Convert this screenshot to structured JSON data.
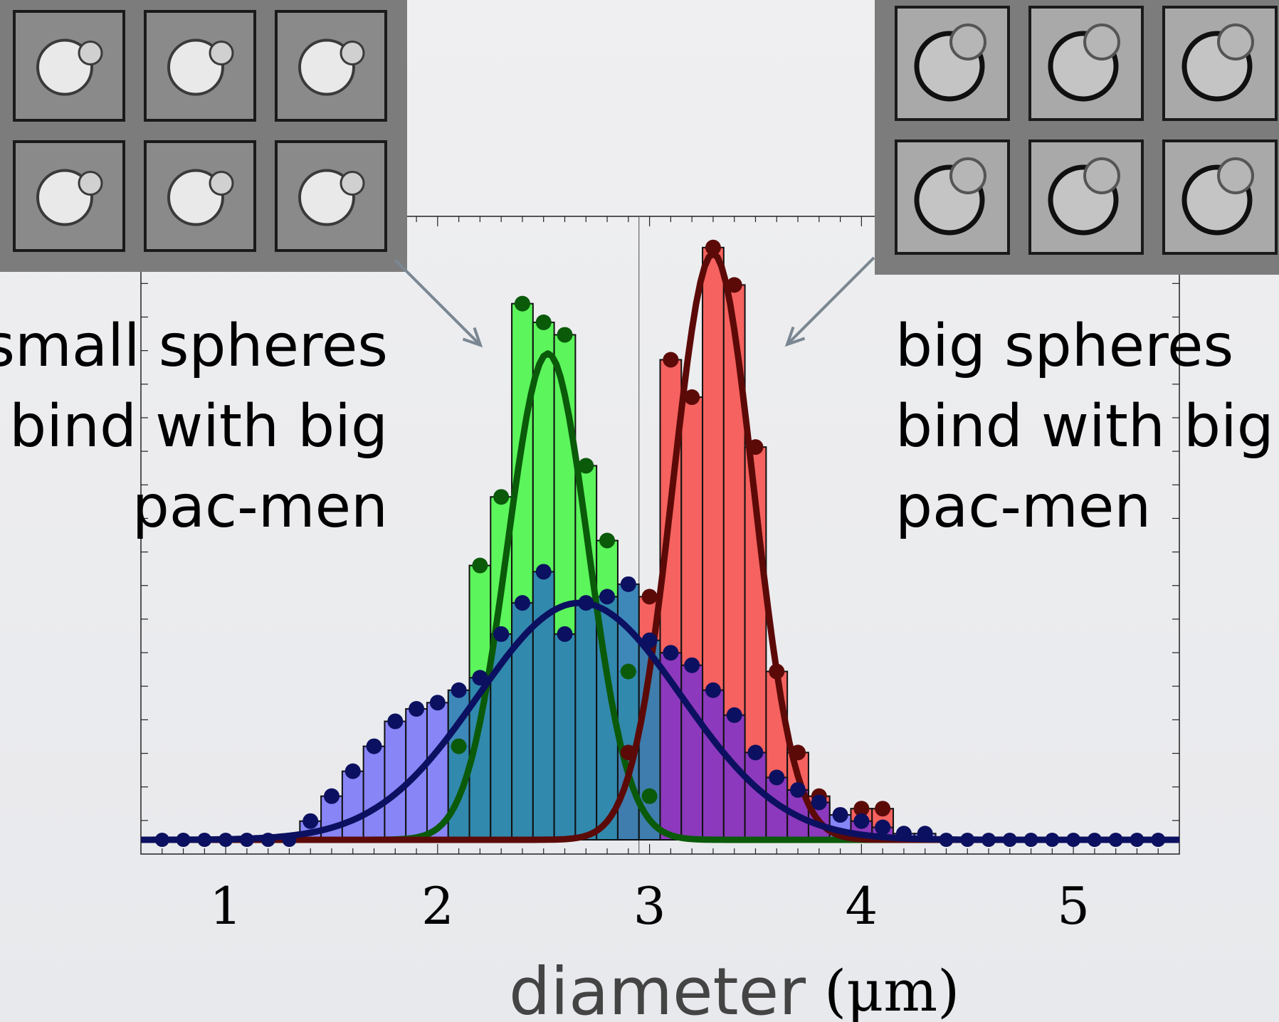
{
  "annotations": {
    "left": "small spheres\nbind with big\npac-men",
    "right": "big spheres\nbind with big\npac-men"
  },
  "thumbnails": {
    "left": "small-sphere-cluster-micrographs",
    "right": "big-sphere-cluster-micrographs"
  },
  "colors": {
    "green_bar": "#5cf55c",
    "green_fit": "#0a5a0a",
    "red_bar": "#f5625f",
    "red_fit": "#5c0a08",
    "blue_bar": "#7f7cf7",
    "blue_fit": "#0c1060",
    "overlap_teal": "#2e7fb4",
    "overlap_purple": "#8235c6"
  },
  "chart_data": {
    "type": "bar",
    "xlabel": "diameter",
    "xlabel_unit": "(μm)",
    "ylabel": "",
    "xlim": [
      0.6,
      5.5
    ],
    "ylim": [
      0,
      1.0
    ],
    "x_ticks": [
      "1",
      "2",
      "3",
      "4",
      "5"
    ],
    "bin_width": 0.1,
    "grid": false,
    "series": [
      {
        "key": "green",
        "x": [
          2.1,
          2.2,
          2.3,
          2.4,
          2.5,
          2.6,
          2.7,
          2.8,
          2.9,
          3.0
        ],
        "values": [
          0.15,
          0.44,
          0.55,
          0.86,
          0.83,
          0.81,
          0.6,
          0.48,
          0.27,
          0.07
        ],
        "fit_peak": 0.78,
        "fit_mean": 2.52,
        "fit_sigma": 0.19
      },
      {
        "key": "red",
        "x": [
          2.9,
          3.0,
          3.1,
          3.2,
          3.3,
          3.4,
          3.5,
          3.6,
          3.7,
          3.8,
          4.0,
          4.1
        ],
        "values": [
          0.14,
          0.39,
          0.77,
          0.71,
          0.95,
          0.89,
          0.63,
          0.27,
          0.14,
          0.07,
          0.05,
          0.05
        ],
        "fit_peak": 0.94,
        "fit_mean": 3.3,
        "fit_sigma": 0.19
      },
      {
        "key": "blue",
        "x": [
          1.4,
          1.5,
          1.6,
          1.7,
          1.8,
          1.9,
          2.0,
          2.1,
          2.2,
          2.3,
          2.4,
          2.5,
          2.6,
          2.7,
          2.8,
          2.9,
          3.0,
          3.1,
          3.2,
          3.3,
          3.4,
          3.5,
          3.6,
          3.7,
          3.8,
          3.9,
          4.0,
          4.1,
          4.2,
          4.3
        ],
        "values": [
          0.03,
          0.07,
          0.11,
          0.15,
          0.19,
          0.21,
          0.22,
          0.24,
          0.26,
          0.33,
          0.38,
          0.43,
          0.33,
          0.38,
          0.39,
          0.41,
          0.32,
          0.3,
          0.28,
          0.24,
          0.2,
          0.14,
          0.1,
          0.08,
          0.06,
          0.04,
          0.03,
          0.02,
          0.01,
          0.01
        ],
        "fit_peak": 0.38,
        "fit_mean": 2.67,
        "fit_sigma": 0.48
      }
    ]
  }
}
